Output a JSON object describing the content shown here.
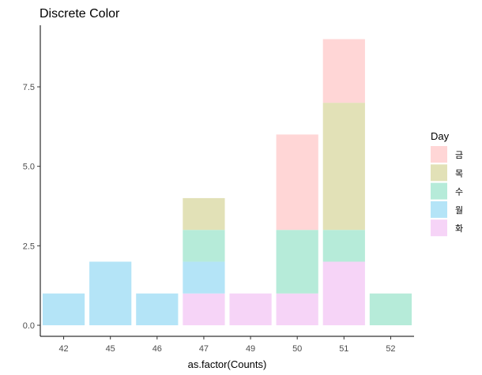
{
  "chart_data": {
    "type": "bar",
    "stacked": true,
    "title": "Discrete Color",
    "xlabel": "as.factor(Counts)",
    "ylabel": "",
    "ylim": [
      0,
      9
    ],
    "yticks": [
      0.0,
      2.5,
      5.0,
      7.5
    ],
    "ytick_labels": [
      "0.0",
      "2.5",
      "5.0",
      "7.5"
    ],
    "categories": [
      "42",
      "45",
      "46",
      "47",
      "49",
      "50",
      "51",
      "52"
    ],
    "series": [
      {
        "name": "금",
        "color": "#FFD6D6",
        "values": [
          0,
          0,
          0,
          0,
          0,
          3,
          2,
          0
        ]
      },
      {
        "name": "목",
        "color": "#E2E1B7",
        "values": [
          0,
          0,
          0,
          1,
          0,
          0,
          4,
          0
        ]
      },
      {
        "name": "수",
        "color": "#B6EBD9",
        "values": [
          0,
          0,
          0,
          1,
          0,
          2,
          1,
          1
        ]
      },
      {
        "name": "월",
        "color": "#B4E4F7",
        "values": [
          1,
          2,
          1,
          1,
          0,
          0,
          0,
          0
        ]
      },
      {
        "name": "화",
        "color": "#F6D4F7",
        "values": [
          0,
          0,
          0,
          1,
          1,
          1,
          2,
          0
        ]
      }
    ],
    "grid": false,
    "legend": {
      "title": "Day",
      "placement": "right"
    }
  }
}
